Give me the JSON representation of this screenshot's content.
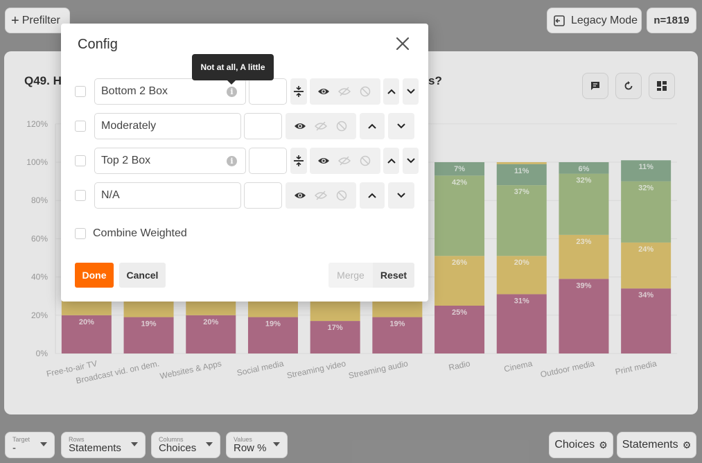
{
  "topbar": {
    "prefilter_label": "Prefilter",
    "legacy_label": "Legacy Mode",
    "n_label": "n=1819"
  },
  "question": {
    "title_start": "Q49. H",
    "title_end": "s?"
  },
  "chart_data": {
    "type": "bar",
    "stacked": true,
    "categories": [
      "Free-to-air TV",
      "Broadcast vid. on dem.",
      "Websites & Apps",
      "Social media",
      "Streaming video",
      "Streaming audio",
      "Radio",
      "Cinema",
      "Outdoor media",
      "Print media"
    ],
    "yticks": [
      "0%",
      "20%",
      "40%",
      "60%",
      "80%",
      "100%",
      "120%"
    ],
    "ylim": [
      0,
      120
    ],
    "series": [
      {
        "name": "Bottom 2 Box",
        "color": "#7a0030",
        "values": [
          20,
          19,
          20,
          19,
          17,
          19,
          25,
          31,
          39,
          34
        ],
        "labels": [
          "20%",
          "19%",
          "20%",
          "19%",
          "17%",
          "19%",
          "25%",
          "31%",
          "39%",
          "34%"
        ]
      },
      {
        "name": "Moderately",
        "color": "#c49500",
        "values": [
          null,
          null,
          null,
          null,
          null,
          null,
          26,
          20,
          23,
          24
        ],
        "labels": [
          "",
          "",
          "",
          "",
          "",
          "",
          "26%",
          "20%",
          "23%",
          "24%"
        ]
      },
      {
        "name": "Top 2 Box",
        "color": "#5e8a28",
        "values": [
          null,
          null,
          null,
          null,
          null,
          null,
          42,
          37,
          32,
          32
        ],
        "labels": [
          "",
          "",
          "",
          "",
          "",
          "",
          "42%",
          "37%",
          "32%",
          "32%"
        ]
      },
      {
        "name": "N/A",
        "color": "#2e6b3a",
        "values": [
          null,
          null,
          null,
          null,
          null,
          null,
          7,
          11,
          6,
          11
        ],
        "labels": [
          "",
          "",
          "",
          "",
          "",
          "",
          "7%",
          "11%",
          "6%",
          "11%"
        ]
      }
    ]
  },
  "bottom": {
    "target_label": "Target",
    "target_value": "-",
    "rows_label": "Rows",
    "rows_value": "Statements",
    "columns_label": "Columns",
    "columns_value": "Choices",
    "values_label": "Values",
    "values_value": "Row %",
    "choices_btn": "Choices",
    "statements_btn": "Statements"
  },
  "modal": {
    "title": "Config",
    "rows": [
      {
        "label": "Bottom 2 Box",
        "has_info": true
      },
      {
        "label": "Moderately",
        "has_info": false
      },
      {
        "label": "Top 2 Box",
        "has_info": true
      },
      {
        "label": "N/A",
        "has_info": false
      }
    ],
    "combine_label": "Combine Weighted",
    "done_label": "Done",
    "cancel_label": "Cancel",
    "merge_label": "Merge",
    "reset_label": "Reset",
    "tooltip": "Not at all, A little"
  },
  "colors": {
    "accent": "#ff6a00"
  }
}
